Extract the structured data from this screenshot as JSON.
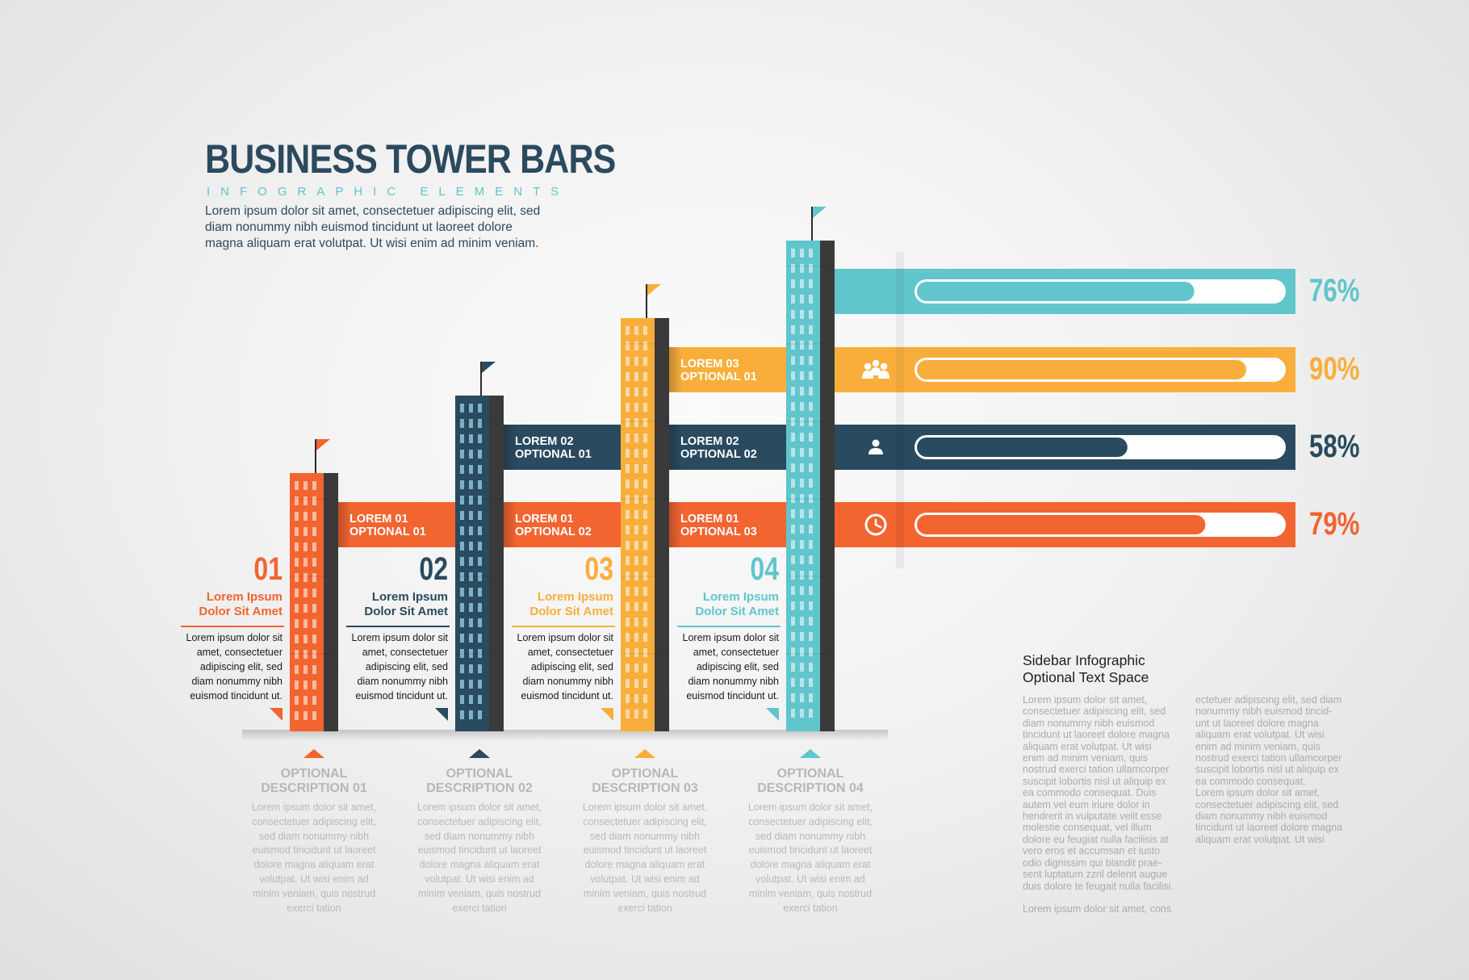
{
  "header": {
    "title": "BUSINESS TOWER BARS",
    "subtitle": "INFOGRAPHIC ELEMENTS",
    "intro": "Lorem ipsum dolor sit amet, consectetuer adipiscing elit, sed diam nonummy nibh euismod tincidunt ut laoreet dolore magna aliquam erat volutpat. Ut wisi enim ad minim veniam."
  },
  "colors": {
    "orange": "#f26430",
    "navy": "#2a4a5f",
    "yellow": "#f9ae3c",
    "teal": "#61c5cc",
    "dark": "#3a3a3a"
  },
  "towers": [
    {
      "number": "01",
      "title_line1": "Lorem Ipsum",
      "title_line2": "Dolor Sit Amet",
      "body": [
        "Lorem ipsum dolor sit",
        "amet, consectetuer",
        "adipiscing elit, sed",
        "diam nonummy nibh",
        "euismod tincidunt ut."
      ],
      "color": "#f26430"
    },
    {
      "number": "02",
      "title_line1": "Lorem Ipsum",
      "title_line2": "Dolor Sit Amet",
      "body": [
        "Lorem ipsum dolor sit",
        "amet, consectetuer",
        "adipiscing elit, sed",
        "diam nonummy nibh",
        "euismod tincidunt ut."
      ],
      "color": "#2a4a5f"
    },
    {
      "number": "03",
      "title_line1": "Lorem Ipsum",
      "title_line2": "Dolor Sit Amet",
      "body": [
        "Lorem ipsum dolor sit",
        "amet, consectetuer",
        "adipiscing elit, sed",
        "diam nonummy nibh",
        "euismod tincidunt ut."
      ],
      "color": "#f9ae3c"
    },
    {
      "number": "04",
      "title_line1": "Lorem Ipsum",
      "title_line2": "Dolor Sit Amet",
      "body": [
        "Lorem ipsum dolor sit",
        "amet, consectetuer",
        "adipiscing elit, sed",
        "diam nonummy nibh",
        "euismod tincidunt ut."
      ],
      "color": "#61c5cc"
    }
  ],
  "ribbons": [
    {
      "line1": "LOREM 01",
      "line2": "OPTIONAL 01",
      "color": "#f26430"
    },
    {
      "line1": "LOREM 01",
      "line2": "OPTIONAL 02",
      "color": "#f26430"
    },
    {
      "line1": "LOREM 01",
      "line2": "OPTIONAL 03",
      "color": "#f26430"
    },
    {
      "line1": "LOREM 02",
      "line2": "OPTIONAL 01",
      "color": "#2a4a5f"
    },
    {
      "line1": "LOREM 02",
      "line2": "OPTIONAL 02",
      "color": "#2a4a5f"
    },
    {
      "line1": "LOREM 03",
      "line2": "OPTIONAL 01",
      "color": "#f9ae3c"
    }
  ],
  "descriptions": [
    {
      "title_line1": "OPTIONAL",
      "title_line2": "DESCRIPTION 01",
      "body": [
        "Lorem ipsum dolor sit amet,",
        "consectetuer adipiscing elit,",
        "sed diam nonummy nibh",
        "euismod tincidunt ut laoreet",
        "dolore magna aliquam erat",
        "volutpat. Ut wisi enim ad",
        "minim veniam, quis nostrud",
        "exerci tation"
      ],
      "color": "#f26430"
    },
    {
      "title_line1": "OPTIONAL",
      "title_line2": "DESCRIPTION 02",
      "body": [
        "Lorem ipsum dolor sit amet,",
        "consectetuer adipiscing elit,",
        "sed diam nonummy nibh",
        "euismod tincidunt ut laoreet",
        "dolore magna aliquam erat",
        "volutpat. Ut wisi enim ad",
        "minim veniam, quis nostrud",
        "exerci tation"
      ],
      "color": "#2a4a5f"
    },
    {
      "title_line1": "OPTIONAL",
      "title_line2": "DESCRIPTION 03",
      "body": [
        "Lorem ipsum dolor sit amet,",
        "consectetuer adipiscing elit,",
        "sed diam nonummy nibh",
        "euismod tincidunt ut laoreet",
        "dolore magna aliquam erat",
        "volutpat. Ut wisi enim ad",
        "minim veniam, quis nostrud",
        "exerci tation"
      ],
      "color": "#f9ae3c"
    },
    {
      "title_line1": "OPTIONAL",
      "title_line2": "DESCRIPTION 04",
      "body": [
        "Lorem ipsum dolor sit amet,",
        "consectetuer adipiscing elit,",
        "sed diam nonummy nibh",
        "euismod tincidunt ut laoreet",
        "dolore magna aliquam erat",
        "volutpat. Ut wisi enim ad",
        "minim veniam, quis nostrud",
        "exerci tation"
      ],
      "color": "#61c5cc"
    }
  ],
  "chart_data": {
    "type": "bar",
    "orientation": "horizontal",
    "categories": [
      "76%",
      "90%",
      "58%",
      "79%"
    ],
    "values": [
      76,
      90,
      58,
      79
    ],
    "value_labels": [
      "76%",
      "90%",
      "58%",
      "79%"
    ],
    "colors": [
      "#61c5cc",
      "#f9ae3c",
      "#2a4a5f",
      "#f26430"
    ],
    "icons": [
      "",
      "people-group-icon",
      "person-icon",
      "clock-icon"
    ],
    "xlim": [
      0,
      100
    ],
    "grid": false
  },
  "sidebar": {
    "title_line1": "Sidebar Infographic",
    "title_line2": "Optional Text Space",
    "col1": [
      "Lorem ipsum dolor sit amet,",
      "consectetuer adipiscing elit, sed",
      "diam nonummy nibh euismod",
      "tincidunt ut laoreet dolore magna",
      "aliquam erat volutpat. Ut wisi",
      "enim ad minim veniam, quis",
      "nostrud exerci tation ullamcorper",
      "suscipit lobortis nisl ut aliquip ex",
      "ea commodo consequat. Duis",
      "autem vel eum iriure dolor in",
      "hendrerit in vulputate velit esse",
      "molestie consequat, vel illum",
      "dolore eu feugiat nulla facilisis at",
      "vero eros et accumsan et iusto",
      "odio dignissim qui blandit prae-",
      "sent luptatum zzril delenit augue",
      "duis dolore te feugait nulla facilisi."
    ],
    "col1_footer": "Lorem ipsum dolor sit amet, cons",
    "col2": [
      "ectetuer adipiscing elit, sed diam",
      "nonummy nibh euismod tincid-",
      "unt ut laoreet dolore magna",
      "aliquam erat volutpat. Ut wisi",
      "enim ad minim veniam, quis",
      "nostrud exerci tation ullamcorper",
      "suscipit lobortis nisl ut aliquip ex",
      "ea commodo consequat.",
      "Lorem ipsum dolor sit amet,",
      "consectetuer adipiscing elit, sed",
      "diam nonummy nibh euismod",
      "tincidunt ut laoreet dolore magna",
      "aliquam erat volutpat. Ut wisi"
    ]
  }
}
